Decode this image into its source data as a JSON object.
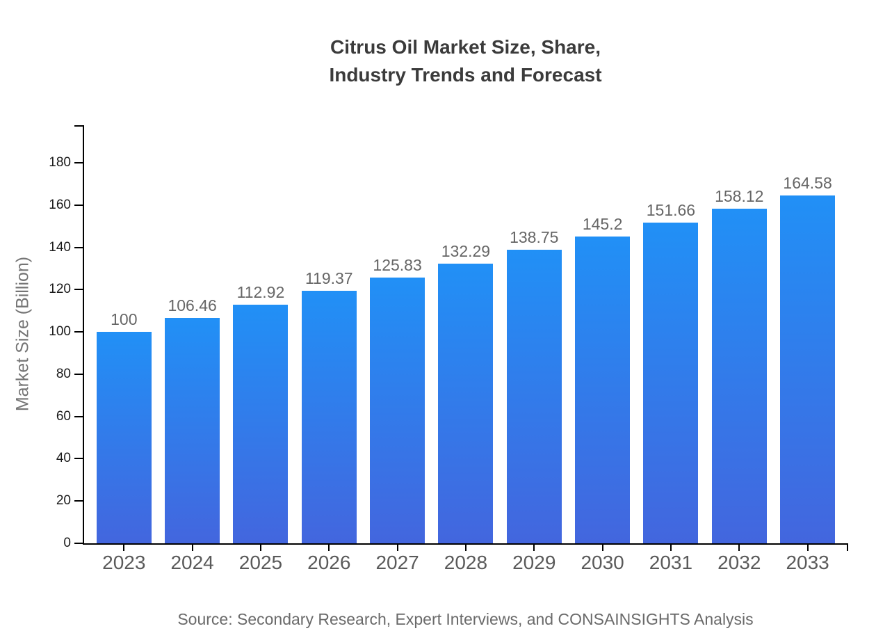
{
  "title": {
    "line1": "Citrus Oil Market Size, Share,",
    "line2": "Industry Trends and Forecast"
  },
  "chart_data": {
    "type": "bar",
    "title": "Citrus Oil Market Size, Share, Industry Trends and Forecast",
    "categories": [
      "2023",
      "2024",
      "2025",
      "2026",
      "2027",
      "2028",
      "2029",
      "2030",
      "2031",
      "2032",
      "2033"
    ],
    "values": [
      100,
      106.46,
      112.92,
      119.37,
      125.83,
      132.29,
      138.75,
      145.2,
      151.66,
      158.12,
      164.58
    ],
    "xlabel": "",
    "ylabel": "Market Size (Billion)",
    "ylim": [
      0,
      197
    ],
    "yticks": [
      0,
      20,
      40,
      60,
      80,
      100,
      120,
      140,
      160,
      180
    ],
    "grid": false,
    "legend": false,
    "value_labels_shown": true
  },
  "source": "Source: Secondary Research, Expert Interviews, and CONSAINSIGHTS Analysis",
  "colors": {
    "bar_gradient_top": "#2190f6",
    "bar_gradient_bottom": "#4366de",
    "axis": "#000000",
    "title_text": "#3b3b3b",
    "value_label": "#666666",
    "x_tick_label": "#5a5a5a",
    "y_tick_label": "#1a1a1a",
    "y_axis_title": "#757575",
    "source_text": "#6a6a6a",
    "background": "#ffffff"
  }
}
